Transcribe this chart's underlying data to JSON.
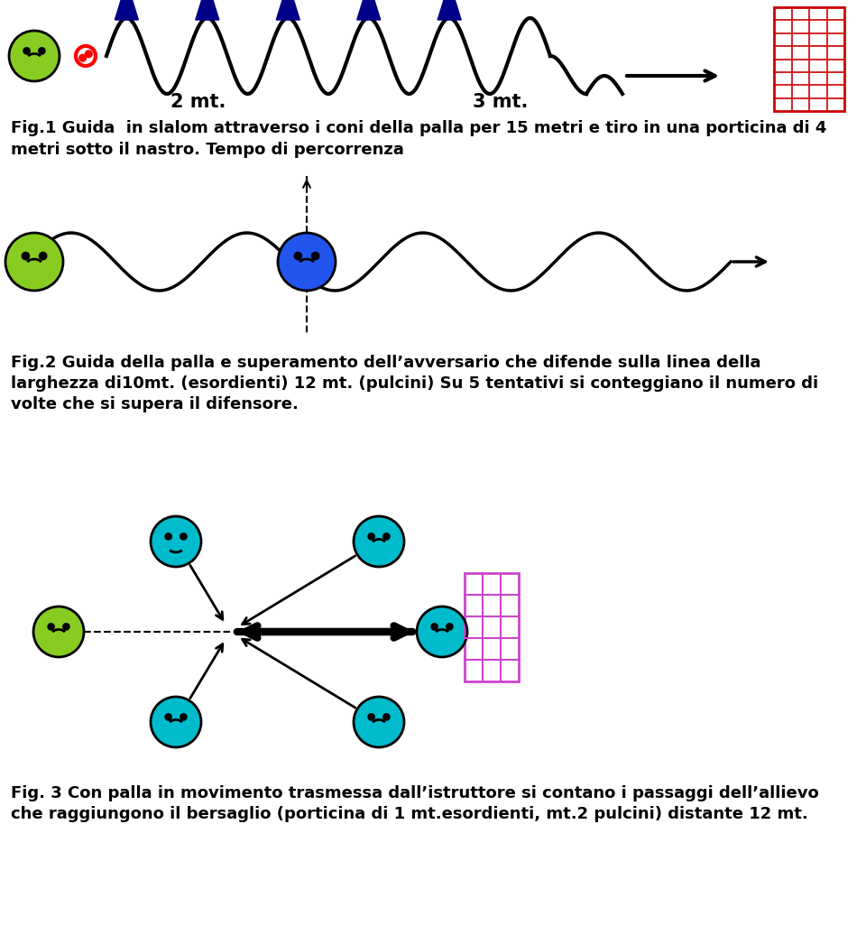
{
  "bg_color": "#ffffff",
  "fig1_text1": "Fig.1 Guida  in slalom attraverso i coni della palla per 15 metri e tiro in una porticina di 4",
  "fig1_text2": "metri sotto il nastro. Tempo di percorrenza",
  "fig2_text1": "Fig.2 Guida della palla e superamento dell’avversario che difende sulla linea della",
  "fig2_text2": "larghezza di10mt. (esordienti) 12 mt. (pulcini) Su 5 tentativi si conteggiano il numero di",
  "fig2_text3": "volte che si supera il difensore.",
  "fig3_text1": "Fig. 3 Con palla in movimento trasmessa dall’istruttore si contano i passaggi dell’allievo",
  "fig3_text2": "che raggiungono il bersaglio (porticina di 1 mt.esordienti, mt.2 pulcini) distante 12 mt.",
  "label_2mt": "2 mt.",
  "label_3mt": "3 mt.",
  "green_color": "#88cc22",
  "blue_color": "#2255ee",
  "cyan_color": "#00bbcc",
  "cone_color": "#000088",
  "goal_red_fill": "#ffffff",
  "goal_red_line": "#cc0000",
  "goal_pink_fill": "#ffffff",
  "goal_pink_line": "#cc44cc"
}
